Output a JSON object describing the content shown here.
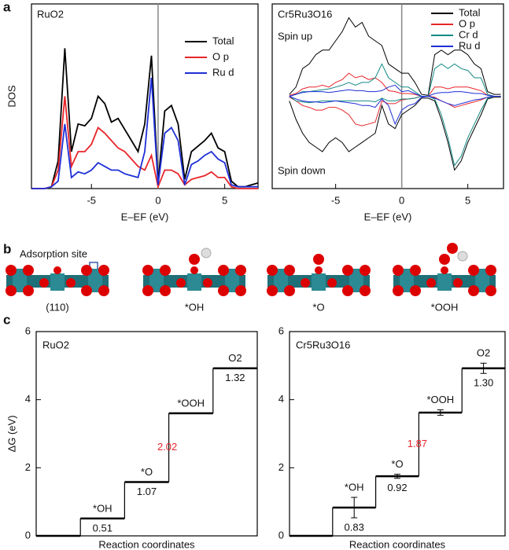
{
  "panel_labels": [
    "a",
    "b",
    "c"
  ],
  "structures": {
    "site_label": "Adsorption site",
    "labels": [
      "(110)",
      "*OH",
      "*O",
      "*OOH"
    ]
  },
  "chart_data": [
    {
      "type": "line",
      "title": "RuO2",
      "ylabel": "DOS",
      "xlabel": "E–EF (eV)",
      "x": [
        -9.5,
        -9,
        -8.5,
        -8,
        -7.5,
        -7,
        -6.5,
        -6,
        -5.5,
        -5,
        -4.5,
        -4,
        -3.5,
        -3,
        -2.5,
        -2,
        -1.5,
        -1,
        -0.5,
        0,
        0.5,
        1,
        1.5,
        2,
        2.5,
        3,
        3.5,
        4,
        4.5,
        5,
        5.5,
        6,
        6.5,
        7,
        7.5
      ],
      "series": [
        {
          "name": "Total",
          "color": "#000000",
          "values": [
            0,
            0,
            0,
            0.01,
            0.15,
            0.76,
            0.2,
            0.35,
            0.34,
            0.38,
            0.5,
            0.46,
            0.36,
            0.38,
            0.32,
            0.26,
            0.2,
            0.35,
            0.72,
            0.03,
            0.42,
            0.45,
            0.35,
            0.05,
            0.2,
            0.23,
            0.26,
            0.3,
            0.22,
            0.2,
            0.04,
            0.01,
            0.01,
            0.02,
            0.03
          ]
        },
        {
          "name": "O p",
          "color": "#e8262a",
          "values": [
            0,
            0,
            0,
            0.01,
            0.1,
            0.5,
            0.12,
            0.2,
            0.2,
            0.24,
            0.33,
            0.3,
            0.26,
            0.22,
            0.2,
            0.16,
            0.12,
            0.1,
            0.18,
            0.01,
            0.1,
            0.1,
            0.08,
            0.02,
            0.05,
            0.06,
            0.07,
            0.09,
            0.06,
            0.06,
            0.01,
            0,
            0,
            0,
            0
          ]
        },
        {
          "name": "Ru d",
          "color": "#1f2fd6",
          "values": [
            0,
            0,
            0,
            0.01,
            0.04,
            0.35,
            0.06,
            0.09,
            0.08,
            0.1,
            0.14,
            0.12,
            0.1,
            0.1,
            0.08,
            0.07,
            0.06,
            0.2,
            0.6,
            0.02,
            0.3,
            0.33,
            0.26,
            0.02,
            0.13,
            0.15,
            0.18,
            0.2,
            0.16,
            0.14,
            0.02,
            0.01,
            0.01,
            0.01,
            0.01
          ]
        }
      ],
      "xlim": [
        -9.5,
        7.5
      ],
      "xticks": [
        -5,
        0,
        5
      ],
      "ylim": [
        0,
        1
      ],
      "vline": 0,
      "legend": "upper right"
    },
    {
      "type": "spin-line",
      "title": "Cr5Ru3O16",
      "annotations": [
        "Spin up",
        "Spin down"
      ],
      "xlabel": "E–EF (eV)",
      "x": [
        -8.5,
        -8,
        -7.5,
        -7,
        -6.5,
        -6,
        -5.5,
        -5,
        -4.5,
        -4,
        -3.5,
        -3,
        -2.5,
        -2,
        -1.5,
        -1,
        -0.5,
        0,
        0.5,
        1,
        1.5,
        2,
        2.5,
        3,
        3.5,
        4,
        4.5,
        5,
        5.5,
        6,
        6.5,
        7,
        7.5
      ],
      "series": [
        {
          "name": "Total",
          "color": "#000000",
          "values": [
            0.02,
            0.1,
            0.3,
            0.35,
            0.45,
            0.5,
            0.5,
            0.6,
            0.7,
            0.85,
            0.75,
            0.8,
            0.65,
            0.6,
            0.55,
            0.35,
            0.3,
            0.25,
            0.25,
            0.15,
            0.02,
            0.01,
            0.45,
            0.5,
            0.45,
            0.5,
            0.5,
            0.45,
            0.35,
            0.3,
            0.05,
            0.02,
            0.02
          ],
          "values_down": [
            -0.05,
            -0.25,
            -0.4,
            -0.5,
            -0.55,
            -0.6,
            -0.5,
            -0.45,
            -0.5,
            -0.6,
            -0.55,
            -0.5,
            -0.45,
            -0.4,
            -0.1,
            -0.3,
            -0.35,
            -0.2,
            -0.15,
            -0.1,
            -0.02,
            -0.02,
            -0.05,
            -0.25,
            -0.5,
            -0.8,
            -0.7,
            -0.5,
            -0.35,
            -0.2,
            -0.03,
            -0.01,
            -0.01
          ]
        },
        {
          "name": "O p",
          "color": "#e8262a",
          "values": [
            0.01,
            0.03,
            0.08,
            0.1,
            0.1,
            0.12,
            0.1,
            0.15,
            0.18,
            0.25,
            0.2,
            0.22,
            0.18,
            0.2,
            0.15,
            0.06,
            0.05,
            0.03,
            0.03,
            0.02,
            0,
            0,
            0.1,
            0.1,
            0.08,
            0.1,
            0.1,
            0.1,
            0.08,
            0.06,
            0.01,
            0,
            0
          ],
          "values_down": [
            -0.01,
            -0.05,
            -0.1,
            -0.12,
            -0.15,
            -0.15,
            -0.12,
            -0.12,
            -0.15,
            -0.2,
            -0.3,
            -0.32,
            -0.3,
            -0.28,
            -0.05,
            -0.08,
            -0.08,
            -0.04,
            -0.03,
            -0.02,
            0,
            0,
            -0.01,
            -0.05,
            -0.08,
            -0.12,
            -0.1,
            -0.08,
            -0.06,
            -0.04,
            -0.01,
            0,
            0
          ]
        },
        {
          "name": "Cr d",
          "color": "#138a85",
          "values": [
            0,
            0.02,
            0.05,
            0.05,
            0.06,
            0.07,
            0.08,
            0.1,
            0.12,
            0.15,
            0.12,
            0.15,
            0.15,
            0.2,
            0.35,
            0.2,
            0.15,
            0.1,
            0.1,
            0.05,
            0,
            0,
            0.3,
            0.35,
            0.3,
            0.35,
            0.3,
            0.28,
            0.2,
            0.2,
            0.02,
            0,
            0
          ],
          "values_down": [
            0,
            -0.05,
            -0.06,
            -0.07,
            -0.06,
            -0.05,
            -0.05,
            -0.05,
            -0.05,
            -0.05,
            -0.05,
            -0.05,
            -0.05,
            -0.06,
            -0.02,
            -0.05,
            -0.05,
            -0.03,
            -0.03,
            -0.02,
            0,
            0,
            -0.03,
            -0.2,
            -0.45,
            -0.75,
            -0.65,
            -0.45,
            -0.3,
            -0.15,
            -0.02,
            0,
            0
          ]
        },
        {
          "name": "Ru d",
          "color": "#1f2fd6",
          "values": [
            0,
            0.02,
            0.04,
            0.05,
            0.05,
            0.05,
            0.04,
            0.05,
            0.06,
            0.07,
            0.06,
            0.06,
            0.05,
            0.05,
            0.06,
            0.1,
            0.12,
            0.05,
            0.06,
            0.03,
            0,
            0,
            0.03,
            0.04,
            0.04,
            0.05,
            0.05,
            0.04,
            0.03,
            0.03,
            0.01,
            0,
            0
          ],
          "values_down": [
            0,
            -0.03,
            -0.05,
            -0.06,
            -0.06,
            -0.07,
            -0.06,
            -0.05,
            -0.06,
            -0.07,
            -0.08,
            -0.1,
            -0.1,
            -0.12,
            -0.03,
            -0.1,
            -0.3,
            -0.15,
            -0.1,
            -0.08,
            -0.01,
            0,
            -0.02,
            -0.05,
            -0.08,
            -0.1,
            -0.08,
            -0.06,
            -0.04,
            -0.03,
            -0.01,
            0,
            0
          ]
        }
      ],
      "xlim": [
        -9.8,
        7.7
      ],
      "xticks": [
        -5,
        0,
        5
      ],
      "ylim": [
        -1,
        1
      ],
      "vline": 0,
      "legend": "upper right"
    },
    {
      "type": "step",
      "title": "RuO2",
      "ylabel": "ΔG (eV)",
      "xlabel": "Reaction coordinates",
      "categories": [
        null,
        "*OH",
        "*O",
        "*OOH",
        "O2"
      ],
      "values": [
        0,
        0.51,
        1.07,
        2.02,
        1.32
      ],
      "color": "#000000",
      "highlight": 3,
      "highlight_color": "#e8262a",
      "ylim": [
        0,
        6
      ],
      "yticks": [
        0,
        2,
        4,
        6
      ]
    },
    {
      "type": "step",
      "title": "Cr5Ru3O16",
      "xlabel": "Reaction coordinates",
      "categories": [
        null,
        "*OH",
        "*O",
        "*OOH",
        "O2"
      ],
      "values": [
        0,
        0.83,
        0.92,
        1.87,
        1.3
      ],
      "value_labels": [
        null,
        "0.83",
        "0.92",
        "1.87",
        "1.30"
      ],
      "errors": [
        null,
        0.3,
        0.06,
        0.08,
        0.15
      ],
      "color": "#000000",
      "highlight": 3,
      "highlight_color": "#e8262a",
      "ylim": [
        0,
        6
      ],
      "yticks": [
        0,
        2,
        4,
        6
      ]
    }
  ]
}
